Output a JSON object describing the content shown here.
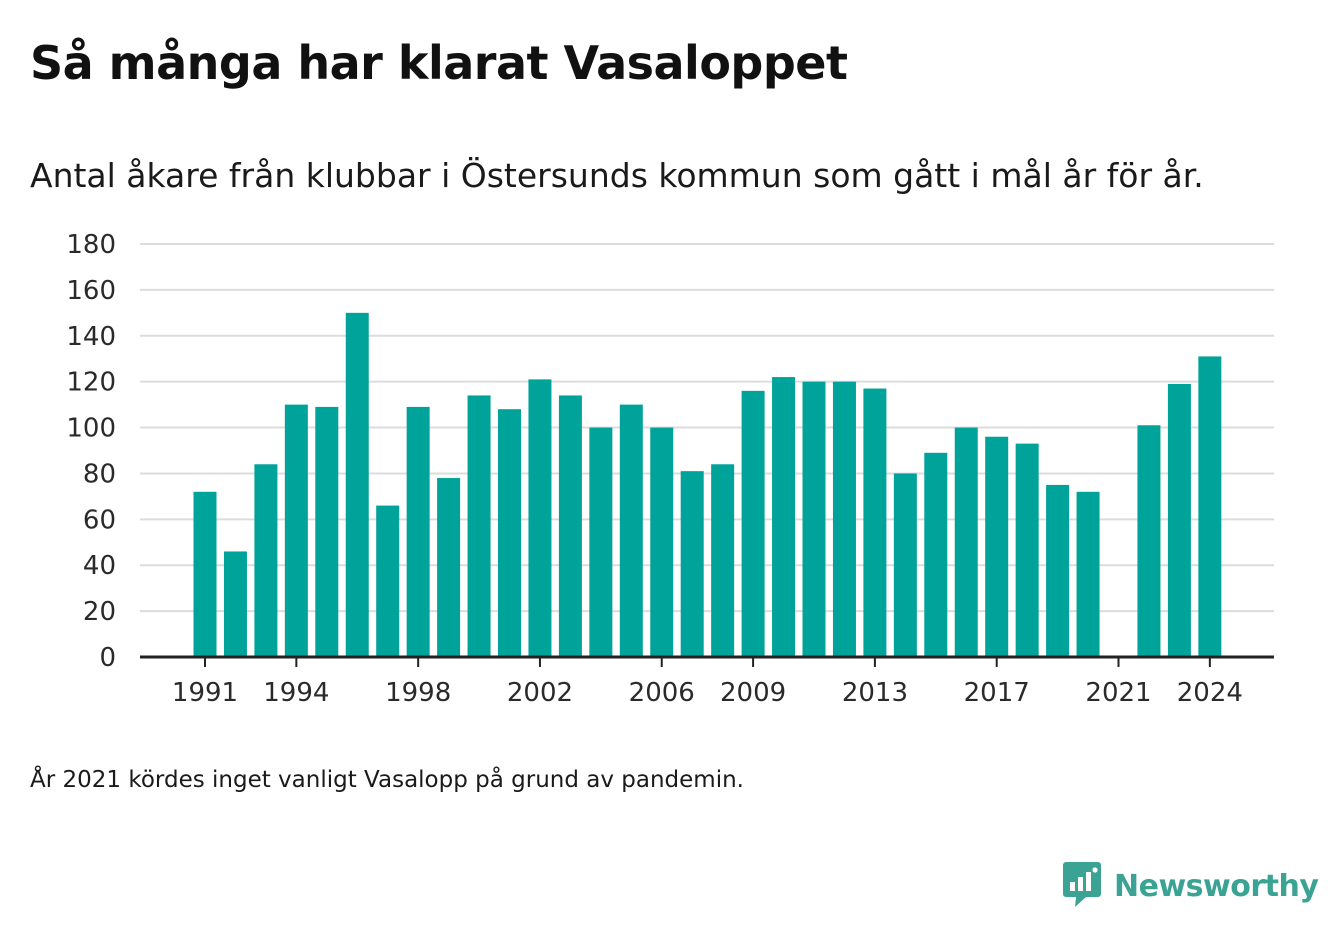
{
  "title": "Så många har klarat Vasaloppet",
  "subtitle": "Antal åkare från klubbar i Östersunds kommun som gått i mål år för år.",
  "note": "År 2021 kördes inget vanligt Vasalopp på grund av pandemin.",
  "brand": {
    "name": "Newsworthy",
    "icon": "bar-chart-bubble-icon"
  },
  "colors": {
    "bar": "#00a39a",
    "grid": "#dcdcdc",
    "axis": "#222222",
    "brand": "#3aa394"
  },
  "chart_data": {
    "type": "bar",
    "title": "Så många har klarat Vasaloppet",
    "xlabel": "",
    "ylabel": "",
    "ylim": [
      0,
      180
    ],
    "yticks": [
      0,
      20,
      40,
      60,
      80,
      100,
      120,
      140,
      160,
      180
    ],
    "x_tick_labels": [
      1991,
      1994,
      1998,
      2002,
      2006,
      2009,
      2013,
      2017,
      2021,
      2024
    ],
    "grid": true,
    "categories": [
      1991,
      1992,
      1993,
      1994,
      1995,
      1996,
      1997,
      1998,
      1999,
      2000,
      2001,
      2002,
      2003,
      2004,
      2005,
      2006,
      2007,
      2008,
      2009,
      2010,
      2011,
      2012,
      2013,
      2014,
      2015,
      2016,
      2017,
      2018,
      2019,
      2020,
      2021,
      2022,
      2023,
      2024
    ],
    "values": [
      72,
      46,
      84,
      110,
      109,
      150,
      66,
      109,
      78,
      114,
      108,
      121,
      114,
      100,
      110,
      100,
      81,
      84,
      116,
      122,
      120,
      120,
      117,
      80,
      89,
      100,
      96,
      93,
      75,
      72,
      null,
      101,
      119,
      131
    ]
  }
}
